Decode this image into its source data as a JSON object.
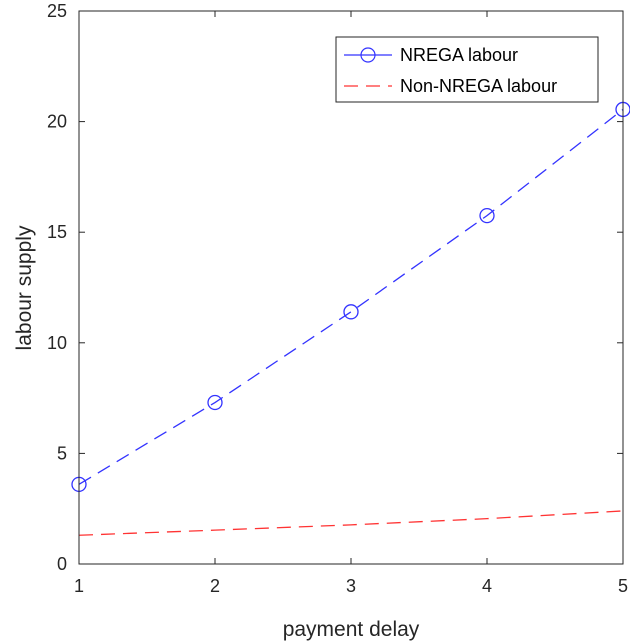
{
  "chart_data": {
    "type": "line",
    "title": "",
    "xlabel": "payment delay",
    "ylabel": "labour supply",
    "xlim": [
      1,
      5
    ],
    "ylim": [
      0,
      25
    ],
    "xticks": [
      1,
      2,
      3,
      4,
      5
    ],
    "yticks": [
      0,
      5,
      10,
      15,
      20,
      25
    ],
    "grid": false,
    "legend_position": "top-right",
    "series": [
      {
        "name": "NREGA labour",
        "color": "#3333ff",
        "line_style": "dashed",
        "marker": "circle",
        "x": [
          1,
          2,
          3,
          4,
          5
        ],
        "y": [
          3.6,
          7.3,
          11.4,
          15.75,
          20.55
        ]
      },
      {
        "name": "Non-NREGA labour",
        "color": "#ff3333",
        "line_style": "dashed",
        "marker": "none",
        "x": [
          1,
          2,
          3,
          4,
          5
        ],
        "y": [
          1.3,
          1.53,
          1.77,
          2.05,
          2.4
        ]
      }
    ]
  }
}
